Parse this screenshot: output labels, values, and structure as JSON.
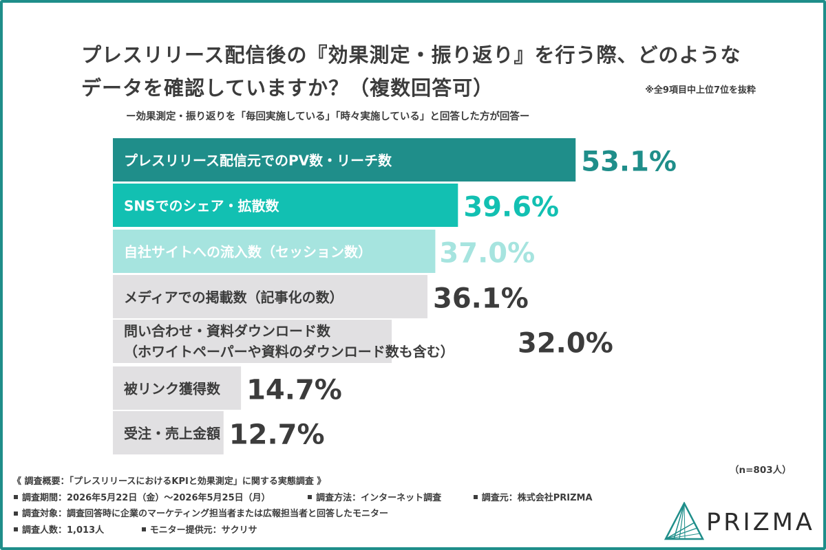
{
  "title_line1": "プレスリリース配信後の『効果測定・振り返り』を行う際、どのような",
  "title_line2": "データを確認していますか？（複数回答可）",
  "note": "※全9項目中上位7位を抜粋",
  "subtitle": "ー効果測定・振り返りを「毎回実施している」「時々実施している」と回答した方が回答ー",
  "sample_size": "（n=803人）",
  "chart_data": {
    "type": "bar",
    "orientation": "horizontal",
    "categories": [
      [
        "プレスリリース配信元でのPV数・リーチ数"
      ],
      [
        "SNSでのシェア・拡散数"
      ],
      [
        "自社サイトへの流入数（セッション数）"
      ],
      [
        "メディアでの掲載数（記事化の数）"
      ],
      [
        "問い合わせ・資料ダウンロード数",
        "（ホワイトペーパーや資料のダウンロード数も含む）"
      ],
      [
        "被リンク獲得数"
      ],
      [
        "受注・売上金額"
      ]
    ],
    "values": [
      53.1,
      39.6,
      37.0,
      36.1,
      32.0,
      14.7,
      12.7
    ],
    "value_labels": [
      "53.1%",
      "39.6%",
      "37.0%",
      "36.1%",
      "32.0%",
      "14.7%",
      "12.7%"
    ],
    "unit": "%",
    "bar_colors": [
      "#1f8e8a",
      "#12c0b2",
      "#a6e4df",
      "#e1e0e2",
      "#e1e0e2",
      "#e1e0e2",
      "#e1e0e2"
    ],
    "label_colors": [
      "#ffffff",
      "#ffffff",
      "#ffffff",
      "#3c3c3c",
      "#3c3c3c",
      "#3c3c3c",
      "#3c3c3c"
    ],
    "value_colors": [
      "#1f8e8a",
      "#12c0b2",
      "#a6e4df",
      "#3c3c3c",
      "#3c3c3c",
      "#3c3c3c",
      "#3c3c3c"
    ]
  },
  "survey": {
    "overview": "《 調査概要：「プレスリリースにおけるKPIと効果測定」に関する実態調査 》",
    "period": "調査期間：2026年5月22日（金）〜2026年5月25日（月）",
    "method": "調査方法：インターネット調査",
    "source": "調査元：株式会社PRIZMA",
    "target": "調査対象：調査回答時に企業のマーケティング担当者または広報担当者と回答したモニター",
    "count": "調査人数：1,013人",
    "provider": "モニター提供元：サクリサ"
  },
  "logo": {
    "text": "PRIZMA",
    "icon": "prizma-prism-icon",
    "color": "#1f8e8a"
  },
  "frame_color": "#1f8e8a"
}
